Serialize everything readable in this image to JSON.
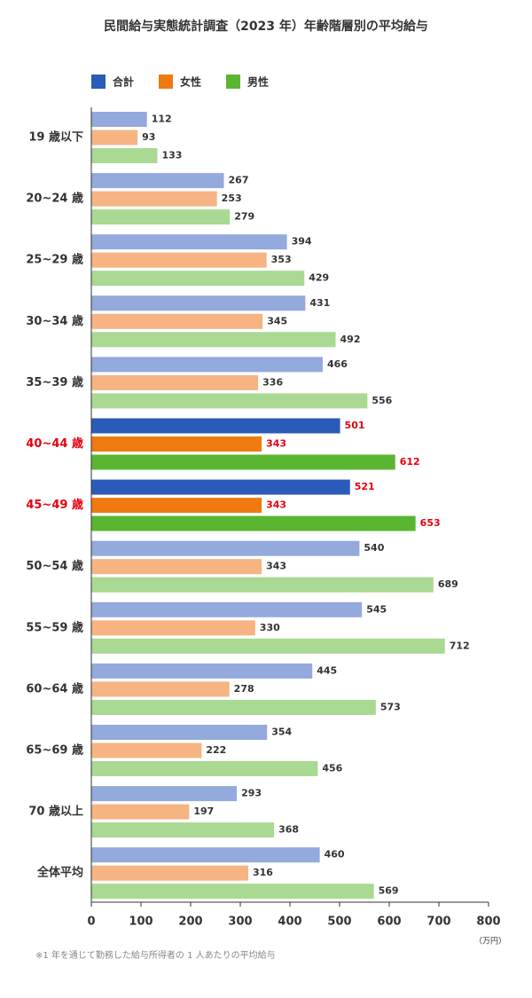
{
  "chart_data": {
    "type": "bar",
    "orientation": "horizontal",
    "title": "民間給与実態統計調査（2023 年）年齢階層別の平均給与",
    "categories": [
      "19 歳以下",
      "20~24 歳",
      "25~29 歳",
      "30~34 歳",
      "35~39 歳",
      "40~44 歳",
      "45~49 歳",
      "50~54 歳",
      "55~59 歳",
      "60~64 歳",
      "65~69 歳",
      "70 歳以上",
      "全体平均"
    ],
    "highlight": [
      false,
      false,
      false,
      false,
      false,
      true,
      true,
      false,
      false,
      false,
      false,
      false,
      false
    ],
    "highlight_label_color": "#e60012",
    "series": [
      {
        "name": "合計",
        "color": "#94a9dc",
        "highlight_color": "#2b5bb8",
        "values": [
          112,
          267,
          394,
          431,
          466,
          501,
          521,
          540,
          545,
          445,
          354,
          293,
          460
        ]
      },
      {
        "name": "女性",
        "color": "#f5b482",
        "highlight_color": "#ef7a10",
        "values": [
          93,
          253,
          353,
          345,
          336,
          343,
          343,
          343,
          330,
          278,
          222,
          197,
          316
        ]
      },
      {
        "name": "男性",
        "color": "#a9d992",
        "highlight_color": "#5ab630",
        "values": [
          133,
          279,
          429,
          492,
          556,
          612,
          653,
          689,
          712,
          573,
          456,
          368,
          569
        ]
      }
    ],
    "xlim": [
      0,
      800
    ],
    "xticks": [
      0,
      100,
      200,
      300,
      400,
      500,
      600,
      700,
      800
    ],
    "x_unit": "（万円）",
    "footnote": "※1 年を通じて勤務した給与所得者の 1 人あたりの平均給与"
  }
}
